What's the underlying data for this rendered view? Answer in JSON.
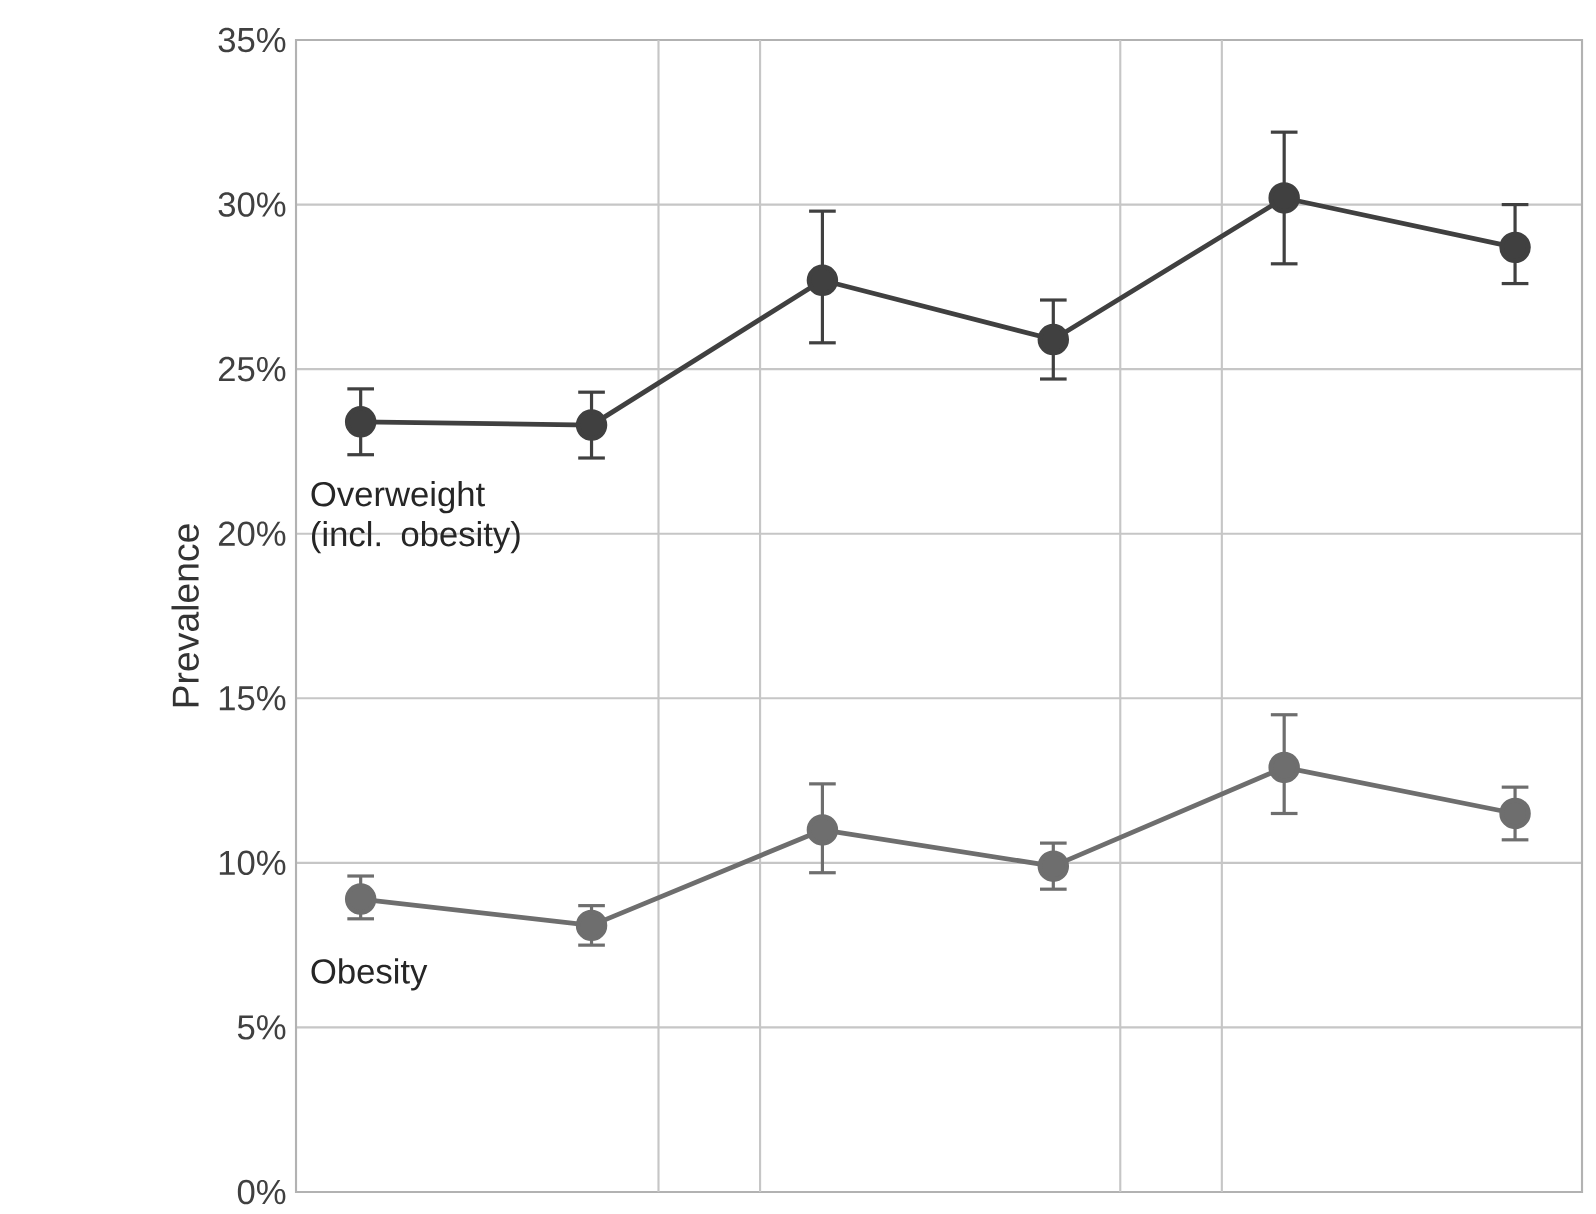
{
  "chart_data": {
    "type": "line",
    "ylabel": "Prevalence",
    "categories": [
      null,
      null,
      null,
      null,
      null,
      null
    ],
    "ylim": [
      0,
      35
    ],
    "yticks": [
      {
        "value": 0,
        "label": "0%"
      },
      {
        "value": 5,
        "label": "5%"
      },
      {
        "value": 10,
        "label": "10%"
      },
      {
        "value": 15,
        "label": "15%"
      },
      {
        "value": 20,
        "label": "20%"
      },
      {
        "value": 25,
        "label": "25%"
      },
      {
        "value": 30,
        "label": "30%"
      },
      {
        "value": 35,
        "label": "35%"
      }
    ],
    "grid": "y",
    "marker": "circle",
    "line_style": "solid",
    "series": [
      {
        "name": "Overweight (incl. obesity)",
        "color": "#404040",
        "values": [
          23.4,
          23.3,
          27.7,
          25.9,
          30.2,
          28.7
        ],
        "errors": [
          [
            22.4,
            24.4
          ],
          [
            22.3,
            24.3
          ],
          [
            25.8,
            29.8
          ],
          [
            24.7,
            27.1
          ],
          [
            28.2,
            32.2
          ],
          [
            27.6,
            30.0
          ]
        ]
      },
      {
        "name": "Obesity",
        "color": "#6e6e6e",
        "values": [
          8.9,
          8.1,
          11.0,
          9.9,
          12.9,
          11.5
        ],
        "errors": [
          [
            8.3,
            9.6
          ],
          [
            7.5,
            8.7
          ],
          [
            9.7,
            12.4
          ],
          [
            9.2,
            10.6
          ],
          [
            11.5,
            14.5
          ],
          [
            10.7,
            12.3
          ]
        ]
      }
    ]
  }
}
